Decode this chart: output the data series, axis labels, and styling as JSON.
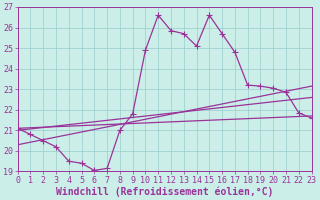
{
  "xlabel": "Windchill (Refroidissement éolien,°C)",
  "ylabel": "",
  "background_color": "#cceee8",
  "grid_color": "#99cccc",
  "line_color": "#993399",
  "xlim": [
    0,
    23
  ],
  "ylim": [
    19,
    27
  ],
  "xticks": [
    0,
    1,
    2,
    3,
    4,
    5,
    6,
    7,
    8,
    9,
    10,
    11,
    12,
    13,
    14,
    15,
    16,
    17,
    18,
    19,
    20,
    21,
    22,
    23
  ],
  "yticks": [
    19,
    20,
    21,
    22,
    23,
    24,
    25,
    26,
    27
  ],
  "series1": {
    "x": [
      0,
      1,
      2,
      3,
      4,
      5,
      6,
      7,
      8,
      9,
      10,
      11,
      12,
      13,
      14,
      15,
      16,
      17,
      18,
      19,
      20,
      21,
      22,
      23
    ],
    "y": [
      21.1,
      20.8,
      20.5,
      20.2,
      19.5,
      19.4,
      19.05,
      19.15,
      21.0,
      21.8,
      24.9,
      26.6,
      25.85,
      25.7,
      25.1,
      26.6,
      25.7,
      24.8,
      23.2,
      23.15,
      23.05,
      22.85,
      21.85,
      21.6
    ]
  },
  "series2": {
    "x": [
      0,
      23
    ],
    "y": [
      21.1,
      21.7
    ]
  },
  "series3": {
    "x": [
      0,
      23
    ],
    "y": [
      21.0,
      22.6
    ]
  },
  "series4": {
    "x": [
      0,
      23
    ],
    "y": [
      20.3,
      23.15
    ]
  },
  "markersize": 3,
  "linewidth": 0.9,
  "tick_fontsize": 6,
  "xlabel_fontsize": 7,
  "tick_color": "#993399",
  "axis_color": "#993399"
}
